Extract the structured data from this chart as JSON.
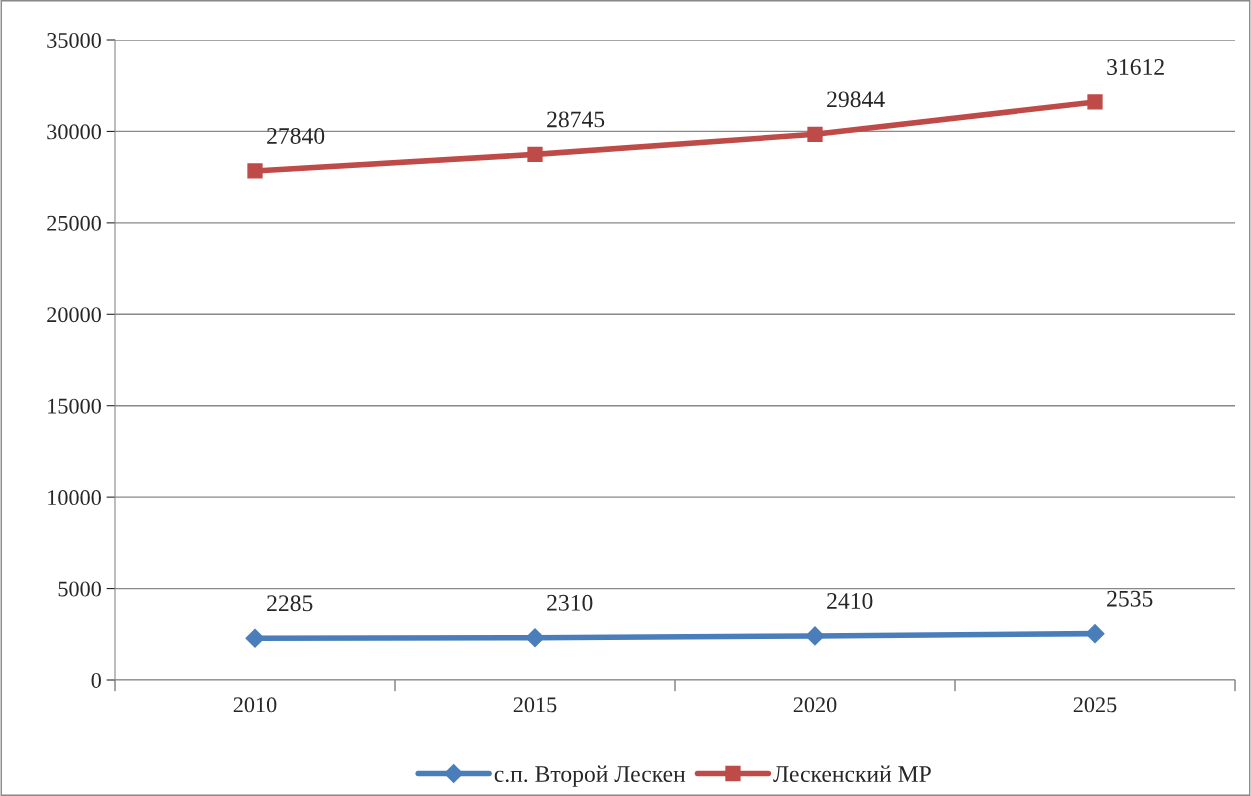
{
  "chart_data": {
    "type": "line",
    "categories": [
      "2010",
      "2015",
      "2020",
      "2025"
    ],
    "series": [
      {
        "name": "с.п. Второй Лескен",
        "color": "#4a7ebb",
        "marker": "diamond",
        "values": [
          2285,
          2310,
          2410,
          2535
        ]
      },
      {
        "name": "Лескенский МР",
        "color": "#be4b48",
        "marker": "square",
        "values": [
          27840,
          28745,
          29844,
          31612
        ]
      }
    ],
    "ylim": [
      0,
      35000
    ],
    "yticks": [
      0,
      5000,
      10000,
      15000,
      20000,
      25000,
      30000,
      35000
    ],
    "grid": "y",
    "legend": "bottom",
    "data_labels": true,
    "line_style": "solid"
  }
}
